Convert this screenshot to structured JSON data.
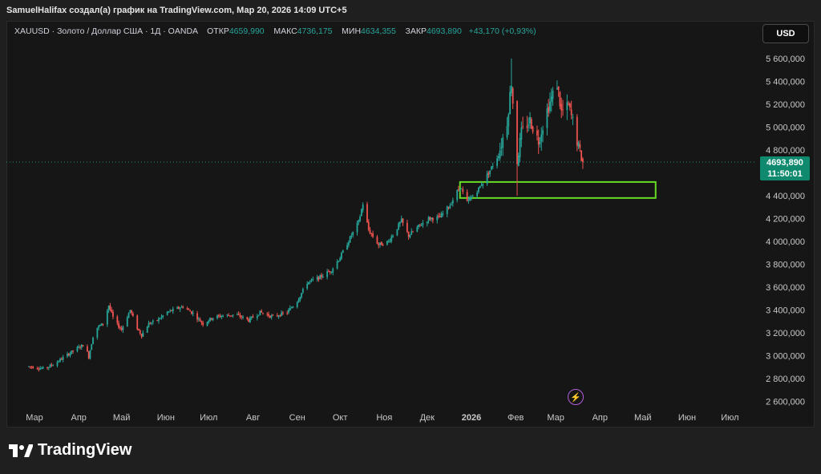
{
  "header": {
    "text": "SamuelHalifax создал(а) график на TradingView.com, Мар 20, 2026 14:09 UTC+5"
  },
  "legend": {
    "symbol": "XAUUSD · Золото / Доллар США · 1Д · OANDA",
    "open_label": "ОТКР",
    "open": "4659,990",
    "high_label": "МАКС",
    "high": "4736,175",
    "low_label": "МИН",
    "low": "4634,355",
    "close_label": "ЗАКР",
    "close": "4693,890",
    "change": "+43,170 (+0,93%)"
  },
  "currency_button": {
    "label": "USD"
  },
  "price_tag": {
    "price": "4693,890",
    "countdown": "11:50:01"
  },
  "brand": {
    "name": "TradingView"
  },
  "colors": {
    "up": "#26a69a",
    "down": "#ef5350",
    "zone": "#66dd22",
    "price_line": "#26a69a",
    "tag": "#0f8a6f"
  },
  "chart_data": {
    "type": "candlestick",
    "title": "XAUUSD · Золото / Доллар США · 1Д · OANDA",
    "y_ticks": [
      "5 600,000",
      "5 400,000",
      "5 200,000",
      "5 000,000",
      "4 800,000",
      "4 600,000",
      "4 400,000",
      "4 200,000",
      "4 000,000",
      "3 800,000",
      "3 600,000",
      "3 400,000",
      "3 200,000",
      "3 000,000",
      "2 800,000",
      "2 600,000"
    ],
    "y_tick_values": [
      5600,
      5400,
      5200,
      5000,
      4800,
      4600,
      4400,
      4200,
      4000,
      3800,
      3600,
      3400,
      3200,
      3000,
      2800,
      2600
    ],
    "x_ticks": [
      "Мар",
      "Апр",
      "Май",
      "Июн",
      "Июл",
      "Авг",
      "Сен",
      "Окт",
      "Ноя",
      "Дек",
      "2026",
      "Фев",
      "Мар",
      "Апр",
      "Май",
      "Июн",
      "Июл"
    ],
    "ylim": [
      2550,
      5700
    ],
    "last_price": 4693.89,
    "zone": {
      "low": 4380,
      "high": 4520
    },
    "grid": false,
    "series_path": [
      [
        "2025-02-25",
        2905
      ],
      [
        "2025-03-01",
        2900
      ],
      [
        "2025-03-08",
        2885
      ],
      [
        "2025-03-15",
        2930
      ],
      [
        "2025-03-22",
        2990
      ],
      [
        "2025-03-29",
        3050
      ],
      [
        "2025-04-05",
        3100
      ],
      [
        "2025-04-08",
        2990
      ],
      [
        "2025-04-12",
        3230
      ],
      [
        "2025-04-18",
        3280
      ],
      [
        "2025-04-22",
        3440
      ],
      [
        "2025-04-26",
        3300
      ],
      [
        "2025-05-01",
        3230
      ],
      [
        "2025-05-07",
        3400
      ],
      [
        "2025-05-12",
        3240
      ],
      [
        "2025-05-15",
        3180
      ],
      [
        "2025-05-20",
        3280
      ],
      [
        "2025-05-26",
        3310
      ],
      [
        "2025-06-02",
        3380
      ],
      [
        "2025-06-13",
        3430
      ],
      [
        "2025-06-20",
        3370
      ],
      [
        "2025-06-27",
        3280
      ],
      [
        "2025-07-04",
        3335
      ],
      [
        "2025-07-11",
        3350
      ],
      [
        "2025-07-20",
        3360
      ],
      [
        "2025-07-29",
        3310
      ],
      [
        "2025-08-06",
        3380
      ],
      [
        "2025-08-15",
        3340
      ],
      [
        "2025-08-25",
        3380
      ],
      [
        "2025-09-01",
        3480
      ],
      [
        "2025-09-08",
        3640
      ],
      [
        "2025-09-16",
        3680
      ],
      [
        "2025-09-25",
        3750
      ],
      [
        "2025-10-01",
        3860
      ],
      [
        "2025-10-08",
        4030
      ],
      [
        "2025-10-14",
        4170
      ],
      [
        "2025-10-17",
        4330
      ],
      [
        "2025-10-21",
        4100
      ],
      [
        "2025-10-28",
        3970
      ],
      [
        "2025-11-04",
        4000
      ],
      [
        "2025-11-13",
        4180
      ],
      [
        "2025-11-18",
        4050
      ],
      [
        "2025-11-25",
        4130
      ],
      [
        "2025-12-02",
        4200
      ],
      [
        "2025-12-10",
        4210
      ],
      [
        "2025-12-17",
        4320
      ],
      [
        "2025-12-24",
        4480
      ],
      [
        "2025-12-29",
        4340
      ],
      [
        "2026-01-06",
        4460
      ],
      [
        "2026-01-13",
        4600
      ],
      [
        "2026-01-20",
        4760
      ],
      [
        "2026-01-26",
        5050
      ],
      [
        "2026-01-29",
        5400
      ],
      [
        "2026-02-02",
        4700
      ],
      [
        "2026-02-05",
        4950
      ],
      [
        "2026-02-11",
        5060
      ],
      [
        "2026-02-17",
        4880
      ],
      [
        "2026-02-23",
        5150
      ],
      [
        "2026-02-26",
        5250
      ],
      [
        "2026-03-02",
        5380
      ],
      [
        "2026-03-05",
        5130
      ],
      [
        "2026-03-10",
        5180
      ],
      [
        "2026-03-13",
        5050
      ],
      [
        "2026-03-17",
        4820
      ],
      [
        "2026-03-20",
        4693.89
      ]
    ]
  }
}
